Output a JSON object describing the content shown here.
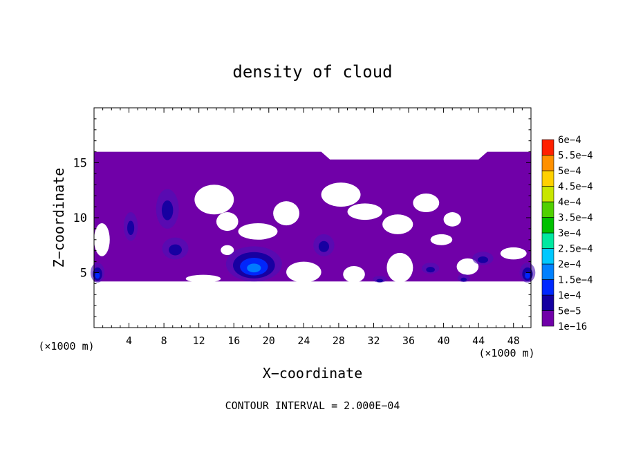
{
  "chart_data": {
    "type": "heatmap",
    "title": "density of cloud",
    "xlabel": "X−coordinate",
    "ylabel": "Z−coordinate",
    "x_unit_left": "(×1000 m)",
    "x_unit_right": "(×1000 m)",
    "footer": "CONTOUR INTERVAL = 2.000E−04",
    "xlim": [
      0,
      50
    ],
    "ylim": [
      0,
      20
    ],
    "x_ticks": [
      4,
      8,
      12,
      16,
      20,
      24,
      28,
      32,
      36,
      40,
      44,
      48
    ],
    "x_tick_labels": [
      "4",
      "8",
      "12",
      "16",
      "20",
      "24",
      "28",
      "32",
      "36",
      "40",
      "44",
      "48"
    ],
    "y_ticks": [
      5,
      10,
      15
    ],
    "y_tick_labels": [
      "5",
      "10",
      "15"
    ],
    "colorbar": {
      "levels": [
        {
          "label": "1e−16",
          "color": "#7000a8"
        },
        {
          "label": "5e−5",
          "color": "#1400a0"
        },
        {
          "label": "1e−4",
          "color": "#0028ff"
        },
        {
          "label": "1.5e−4",
          "color": "#0080ff"
        },
        {
          "label": "2e−4",
          "color": "#00c8ff"
        },
        {
          "label": "2.5e−4",
          "color": "#00e8a0"
        },
        {
          "label": "3e−4",
          "color": "#00c000"
        },
        {
          "label": "3.5e−4",
          "color": "#50d000"
        },
        {
          "label": "4e−4",
          "color": "#c8e600"
        },
        {
          "label": "4.5e−4",
          "color": "#ffd000"
        },
        {
          "label": "5e−4",
          "color": "#ff9000"
        },
        {
          "label": "5.5e−4",
          "color": "#ff2000"
        },
        {
          "label": "6e−4",
          "color": "#ff7070"
        }
      ]
    },
    "cloud_region": {
      "z_bottom": 4.2,
      "z_top": 16,
      "z_top_right": 15.3
    },
    "clear_gaps": [
      {
        "x": [
          11.5,
          16
        ],
        "z": [
          10.3,
          13
        ]
      },
      {
        "x": [
          14,
          16.5
        ],
        "z": [
          8.8,
          10.5
        ]
      },
      {
        "x": [
          16.5,
          21
        ],
        "z": [
          8,
          9.5
        ]
      },
      {
        "x": [
          20.5,
          23.5
        ],
        "z": [
          9.3,
          11.5
        ]
      },
      {
        "x": [
          26,
          30.5
        ],
        "z": [
          11,
          13.2
        ]
      },
      {
        "x": [
          29,
          33
        ],
        "z": [
          9.8,
          11.3
        ]
      },
      {
        "x": [
          33,
          36.5
        ],
        "z": [
          8.5,
          10.3
        ]
      },
      {
        "x": [
          36.5,
          39.5
        ],
        "z": [
          10.5,
          12.2
        ]
      },
      {
        "x": [
          40,
          42
        ],
        "z": [
          9.2,
          10.5
        ]
      },
      {
        "x": [
          0,
          1.8
        ],
        "z": [
          6.5,
          9.5
        ]
      },
      {
        "x": [
          14.5,
          16
        ],
        "z": [
          6.6,
          7.5
        ]
      },
      {
        "x": [
          22,
          26
        ],
        "z": [
          4.1,
          6
        ]
      },
      {
        "x": [
          28.5,
          31
        ],
        "z": [
          4.1,
          5.6
        ]
      },
      {
        "x": [
          33.5,
          36.5
        ],
        "z": [
          4.1,
          6.8
        ]
      },
      {
        "x": [
          41.5,
          44
        ],
        "z": [
          4.8,
          6.3
        ]
      },
      {
        "x": [
          10.5,
          14.5
        ],
        "z": [
          4.1,
          4.8
        ]
      },
      {
        "x": [
          46.5,
          49.5
        ],
        "z": [
          6.2,
          7.3
        ]
      },
      {
        "x": [
          38.5,
          41
        ],
        "z": [
          7.5,
          8.5
        ]
      }
    ],
    "features": [
      {
        "x": 18.3,
        "z": 5.8,
        "rx": 3.2,
        "rz": 1.6,
        "level": 3
      },
      {
        "x": 0.4,
        "z": 5.0,
        "rx": 0.8,
        "rz": 0.9,
        "level": 2
      },
      {
        "x": 49.6,
        "z": 5.0,
        "rx": 0.9,
        "rz": 0.9,
        "level": 2
      },
      {
        "x": 4.2,
        "z": 9.2,
        "rx": 0.8,
        "rz": 1.3,
        "level": 1
      },
      {
        "x": 8.4,
        "z": 10.8,
        "rx": 1.3,
        "rz": 1.8,
        "level": 1
      },
      {
        "x": 9.3,
        "z": 7.2,
        "rx": 1.5,
        "rz": 1.0,
        "level": 1
      },
      {
        "x": 26.3,
        "z": 7.5,
        "rx": 1.2,
        "rz": 1.0,
        "level": 1
      },
      {
        "x": 32.7,
        "z": 4.4,
        "rx": 0.8,
        "rz": 0.3,
        "level": 1
      },
      {
        "x": 44.5,
        "z": 6.3,
        "rx": 1.2,
        "rz": 0.6,
        "level": 1
      },
      {
        "x": 38.5,
        "z": 5.4,
        "rx": 1.0,
        "rz": 0.5,
        "level": 1
      },
      {
        "x": 42.3,
        "z": 4.5,
        "rx": 0.7,
        "rz": 0.35,
        "level": 1
      }
    ]
  }
}
